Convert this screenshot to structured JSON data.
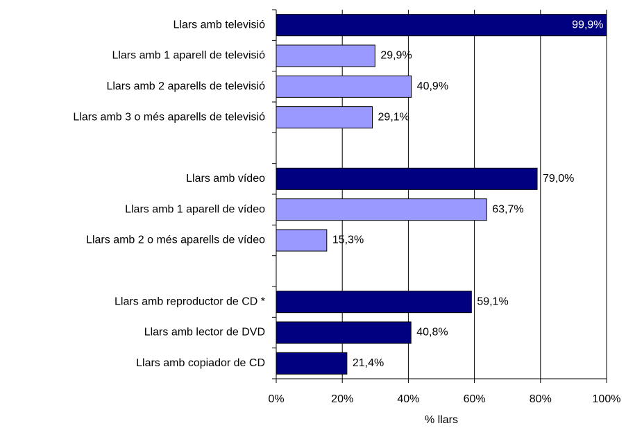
{
  "chart_data": {
    "type": "hbar",
    "categories": [
      "Llars amb televisió",
      "Llars amb 1 aparell de televisió",
      "Llars amb 2 aparells de televisió",
      "Llars amb 3 o més aparells de televisió",
      null,
      "Llars amb vídeo",
      "Llars amb 1 aparell de vídeo",
      "Llars amb 2 o més aparells de vídeo",
      null,
      "Llars amb reproductor de CD *",
      "Llars amb lector de DVD",
      "Llars amb copiador de CD"
    ],
    "values": [
      99.9,
      29.9,
      40.9,
      29.1,
      null,
      79.0,
      63.7,
      15.3,
      null,
      59.1,
      40.8,
      21.4
    ],
    "value_labels": [
      "99,9%",
      "29,9%",
      "40,9%",
      "29,1%",
      null,
      "79,0%",
      "63,7%",
      "15,3%",
      null,
      "59,1%",
      "40,8%",
      "21,4%"
    ],
    "colors": [
      "#000080",
      "#9999ff",
      "#9999ff",
      "#9999ff",
      null,
      "#000080",
      "#9999ff",
      "#9999ff",
      null,
      "#000080",
      "#000080",
      "#000080"
    ],
    "x_label": "% llars",
    "xlim": [
      0,
      100
    ],
    "xticks": [
      {
        "value": 0,
        "label": "0%"
      },
      {
        "value": 20,
        "label": "20%"
      },
      {
        "value": 40,
        "label": "40%"
      },
      {
        "value": 60,
        "label": "60%"
      },
      {
        "value": 80,
        "label": "80%"
      },
      {
        "value": 100,
        "label": "100%"
      }
    ],
    "grid": true
  }
}
